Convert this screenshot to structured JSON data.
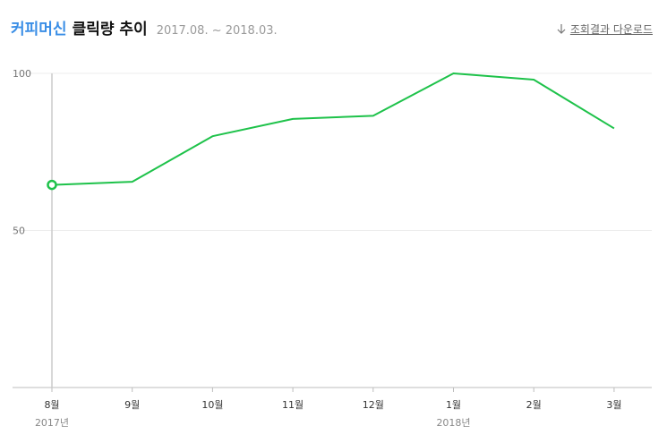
{
  "header": {
    "keyword": "커피머신",
    "title": "클릭량 추이",
    "period": "2017.08. ~ 2018.03."
  },
  "download": {
    "label": "조회결과 다운로드",
    "icon": "download-arrow-icon"
  },
  "colors": {
    "line": "#1ec24a",
    "keyword": "#3a8ee6",
    "grid": "#ececec",
    "axis": "#bdbdbd",
    "cursor": "#cccccc"
  },
  "chart_data": {
    "type": "line",
    "categories": [
      "8월",
      "9월",
      "10월",
      "11월",
      "12월",
      "1월",
      "2월",
      "3월"
    ],
    "year_labels": [
      {
        "index": 0,
        "label": "2017년"
      },
      {
        "index": 5,
        "label": "2018년"
      }
    ],
    "series": [
      {
        "values": [
          64.5,
          65.5,
          80,
          85.5,
          86.5,
          100,
          98,
          82.5
        ]
      }
    ],
    "highlight_index": 0,
    "yticks": [
      50,
      100
    ],
    "ylim": [
      0,
      100
    ],
    "grid": true
  }
}
